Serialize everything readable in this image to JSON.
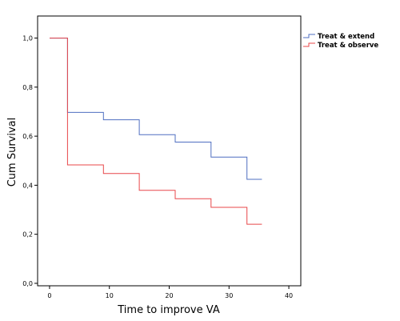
{
  "chart_data": {
    "type": "line",
    "step": true,
    "xlabel": "Time to improve VA",
    "ylabel": "Cum Survival",
    "xlim": [
      -2,
      42
    ],
    "ylim": [
      -0.01,
      1.09
    ],
    "x_ticks": [
      0,
      10,
      20,
      30,
      40
    ],
    "x_tick_labels": [
      "0",
      "10",
      "20",
      "30",
      "40"
    ],
    "y_ticks": [
      0.0,
      0.2,
      0.4,
      0.6,
      0.8,
      1.0
    ],
    "y_tick_labels": [
      "0,0",
      "0,2",
      "0,4",
      "0,6",
      "0,8",
      "1,0"
    ],
    "grid": false,
    "legend_position": "top-right outside",
    "series": [
      {
        "name": "Treat & extend",
        "color": "#4f6fc1",
        "points": [
          [
            0,
            1.0
          ],
          [
            3,
            1.0
          ],
          [
            3,
            0.697
          ],
          [
            9,
            0.697
          ],
          [
            9,
            0.667
          ],
          [
            15,
            0.667
          ],
          [
            15,
            0.606
          ],
          [
            21,
            0.606
          ],
          [
            21,
            0.576
          ],
          [
            27,
            0.576
          ],
          [
            27,
            0.515
          ],
          [
            33,
            0.515
          ],
          [
            33,
            0.424
          ],
          [
            35.5,
            0.424
          ]
        ]
      },
      {
        "name": "Treat & observe",
        "color": "#e8474a",
        "points": [
          [
            0,
            1.0
          ],
          [
            3,
            1.0
          ],
          [
            3,
            0.483
          ],
          [
            9,
            0.483
          ],
          [
            9,
            0.448
          ],
          [
            15,
            0.448
          ],
          [
            15,
            0.379
          ],
          [
            21,
            0.379
          ],
          [
            21,
            0.345
          ],
          [
            27,
            0.345
          ],
          [
            27,
            0.31
          ],
          [
            33,
            0.31
          ],
          [
            33,
            0.241
          ],
          [
            35.5,
            0.241
          ]
        ]
      }
    ]
  }
}
